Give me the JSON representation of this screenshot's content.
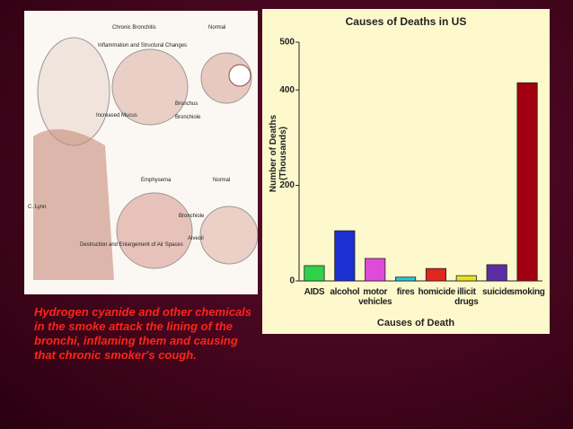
{
  "illustration": {
    "labels": [
      "Chronic Bronchitis",
      "Normal",
      "Inflammation and Structural Changes",
      "Increased Mucus",
      "Bronchus",
      "Bronchiole",
      "Emphysema",
      "Normal",
      "Bronchiole",
      "Alveoli",
      "Destruction and Enlargement of Air Spaces",
      "C. Lynn"
    ]
  },
  "caption": "Hydrogen cyanide and other chemicals in the smoke attack the lining of the bronchi, inflaming them and causing that chronic smoker's cough.",
  "chart_data": {
    "type": "bar",
    "title": "Causes of Deaths in US",
    "x_label": "Causes of Death",
    "y_label": "Number of Deaths (Thousands)",
    "categories": [
      "AIDS",
      "alcohol",
      "motor vehicles",
      "fires",
      "homicide",
      "illicit drugs",
      "suicide",
      "smoking"
    ],
    "values": [
      32,
      105,
      47,
      8,
      26,
      11,
      34,
      415
    ],
    "colors": [
      "#2fd24a",
      "#1c2fd0",
      "#e04ad8",
      "#2ec4d4",
      "#e0261e",
      "#e8e224",
      "#5a2ea0",
      "#a0000f"
    ],
    "ylim": [
      0,
      500
    ],
    "yticks": [
      0,
      200,
      400,
      500
    ],
    "grid": false
  }
}
